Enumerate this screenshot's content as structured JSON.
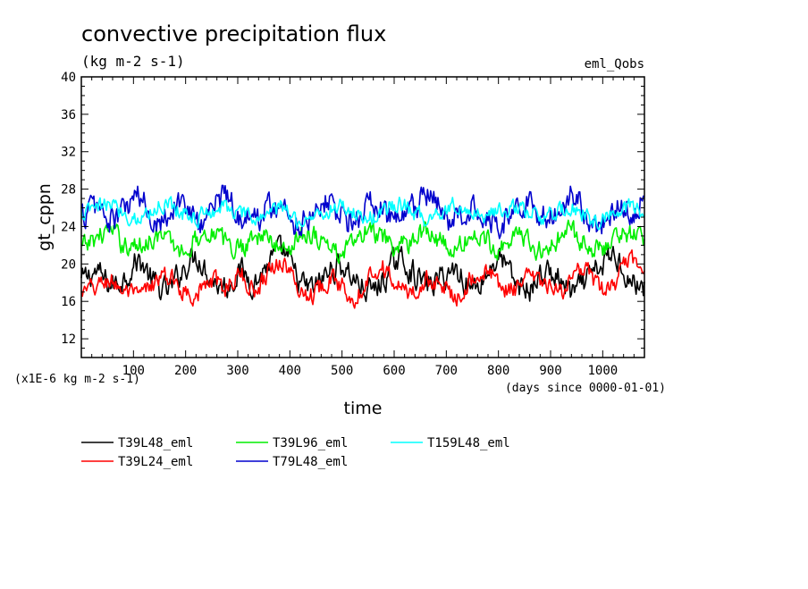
{
  "chart_data": {
    "type": "line",
    "title": "convective precipitation flux",
    "subtitle": "(kg m-2 s-1)",
    "experiment": "eml_Qobs",
    "xlabel": "time",
    "xunit": "(days since 0000-01-01)",
    "ylabel": "gt_cppn",
    "yunit": "(x1E-6 kg m-2 s-1)",
    "xlim": [
      0,
      1080
    ],
    "ylim": [
      10,
      40
    ],
    "xticks": [
      "100",
      "200",
      "300",
      "400",
      "500",
      "600",
      "700",
      "800",
      "900",
      "1000"
    ],
    "yticks": [
      "12",
      "16",
      "20",
      "24",
      "28",
      "32",
      "36",
      "40"
    ],
    "legend_placement": "bottom-left",
    "series": [
      {
        "name": "T39L48_eml",
        "color": "#000000",
        "x_step": 2,
        "mean": 18.4,
        "amp": 1.2,
        "values": [
          18.2,
          19.1,
          17.8,
          18.6,
          20.3,
          18.0,
          17.2,
          19.4,
          20.8,
          18.5,
          17.6,
          19.2,
          18.1,
          20.1,
          21.2,
          18.3,
          17.4,
          18.9,
          19.8,
          18.2,
          17.1,
          18.4,
          20.5,
          19.0,
          17.8,
          18.6,
          19.3,
          17.5,
          18.8,
          20.6,
          18.1,
          17.3,
          19.0,
          18.4,
          16.9,
          18.2,
          19.7,
          20.9,
          18.3,
          17.7
        ]
      },
      {
        "name": "T39L24_eml",
        "color": "#ff0000",
        "x_step": 2,
        "mean": 17.8,
        "amp": 0.9,
        "values": [
          16.8,
          17.5,
          18.2,
          17.1,
          16.5,
          17.9,
          18.6,
          17.3,
          16.9,
          18.1,
          17.6,
          18.8,
          17.2,
          19.4,
          20.1,
          17.5,
          16.8,
          18.3,
          17.7,
          16.6,
          18.9,
          19.5,
          17.4,
          17.0,
          18.2,
          17.6,
          16.7,
          18.4,
          19.1,
          17.8,
          17.2,
          18.5,
          17.9,
          16.9,
          18.6,
          19.0,
          17.3,
          18.1,
          20.4,
          18.7
        ]
      },
      {
        "name": "T39L96_eml",
        "color": "#00ee00",
        "x_step": 2,
        "mean": 22.4,
        "amp": 1.0,
        "values": [
          21.6,
          22.8,
          23.4,
          22.1,
          21.9,
          23.0,
          22.5,
          21.4,
          22.7,
          23.6,
          22.2,
          21.8,
          23.1,
          22.6,
          21.5,
          22.9,
          23.3,
          22.0,
          21.2,
          22.4,
          23.5,
          22.3,
          21.7,
          22.8,
          23.7,
          22.1,
          21.6,
          23.0,
          22.5,
          21.9,
          23.2,
          22.4,
          21.3,
          22.7,
          23.4,
          22.0,
          21.8,
          22.9,
          23.1,
          22.6
        ]
      },
      {
        "name": "T79L48_eml",
        "color": "#0000cd",
        "x_step": 2,
        "mean": 25.4,
        "amp": 1.3,
        "values": [
          25.1,
          26.2,
          24.6,
          25.8,
          27.0,
          24.9,
          25.5,
          26.7,
          24.3,
          25.9,
          27.4,
          25.2,
          24.8,
          26.1,
          25.6,
          24.4,
          25.7,
          26.9,
          25.0,
          24.7,
          26.4,
          25.3,
          24.5,
          25.9,
          27.1,
          25.4,
          24.6,
          26.0,
          25.7,
          24.2,
          25.8,
          26.6,
          24.9,
          25.5,
          27.6,
          25.1,
          24.4,
          26.3,
          25.6,
          26.8
        ]
      },
      {
        "name": "T159L48_eml",
        "color": "#00ffff",
        "x_step": 2,
        "mean": 25.6,
        "amp": 0.8,
        "values": [
          25.2,
          25.9,
          26.3,
          25.4,
          24.9,
          25.8,
          26.5,
          25.6,
          25.0,
          25.7,
          26.1,
          25.3,
          24.8,
          25.5,
          25.9,
          24.7,
          25.1,
          25.6,
          26.2,
          25.4,
          24.9,
          25.7,
          26.4,
          25.5,
          25.0,
          25.8,
          26.3,
          25.6,
          25.2,
          25.9,
          26.0,
          25.3,
          24.8,
          25.4,
          25.9,
          25.1,
          24.7,
          25.6,
          26.1,
          25.5
        ]
      }
    ]
  }
}
